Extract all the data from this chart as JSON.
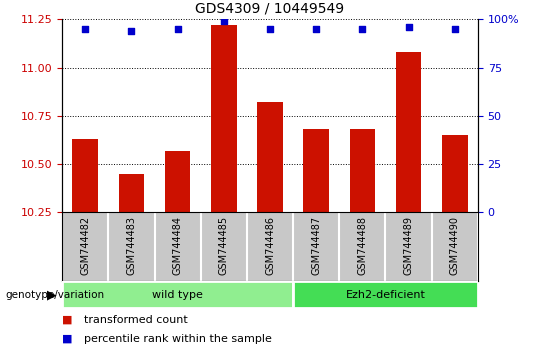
{
  "title": "GDS4309 / 10449549",
  "samples": [
    "GSM744482",
    "GSM744483",
    "GSM744484",
    "GSM744485",
    "GSM744486",
    "GSM744487",
    "GSM744488",
    "GSM744489",
    "GSM744490"
  ],
  "transformed_counts": [
    10.63,
    10.45,
    10.57,
    11.22,
    10.82,
    10.68,
    10.68,
    11.08,
    10.65
  ],
  "percentile_ranks": [
    95,
    94,
    95,
    99,
    95,
    95,
    95,
    96,
    95
  ],
  "ylim_left": [
    10.25,
    11.25
  ],
  "ylim_right": [
    0,
    100
  ],
  "yticks_left": [
    10.25,
    10.5,
    10.75,
    11.0,
    11.25
  ],
  "yticks_right": [
    0,
    25,
    50,
    75,
    100
  ],
  "group_configs": [
    {
      "label": "wild type",
      "start": 0,
      "end": 4,
      "color": "#90EE90"
    },
    {
      "label": "Ezh2-deficient",
      "start": 5,
      "end": 8,
      "color": "#44DD55"
    }
  ],
  "bar_color": "#CC1100",
  "dot_color": "#0000CC",
  "tick_area_color": "#C8C8C8",
  "genotype_label": "genotype/variation",
  "legend_bar_label": "transformed count",
  "legend_dot_label": "percentile rank within the sample",
  "left_tick_color": "#CC0000",
  "right_tick_color": "#0000CC",
  "n_samples": 9
}
